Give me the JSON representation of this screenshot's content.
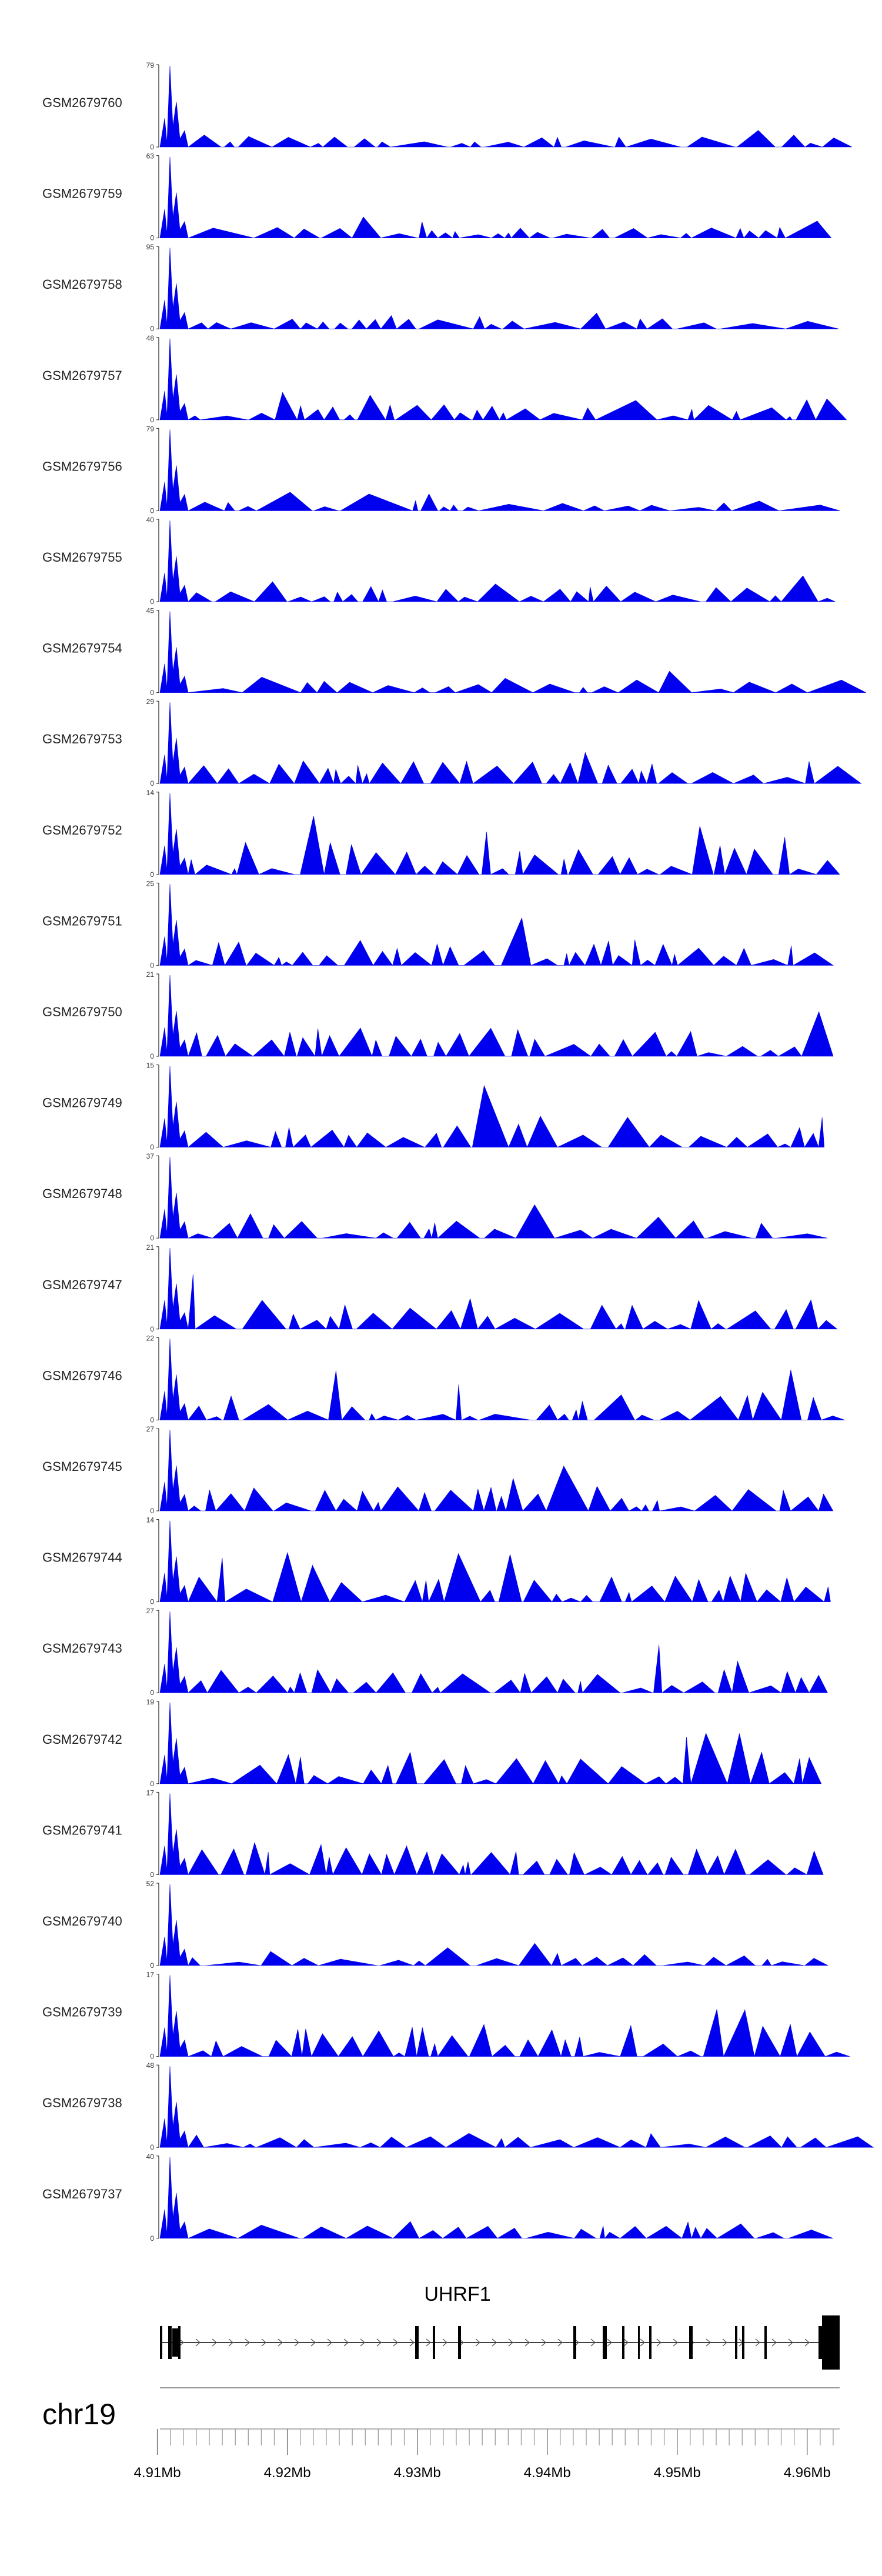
{
  "chart_data": {
    "type": "area",
    "title": "",
    "chromosome": "chr19",
    "gene": "UHRF1",
    "x_range_mb": [
      4.9102,
      4.9625
    ],
    "x_ticks": [
      4.91,
      4.92,
      4.93,
      4.94,
      4.95,
      4.96
    ],
    "x_tick_labels": [
      "4.91Mb",
      "4.92Mb",
      "4.93Mb",
      "4.94Mb",
      "4.95Mb",
      "4.96Mb"
    ],
    "colors": {
      "signal": "#0000ee",
      "gene": "#000000",
      "axis": "#999999"
    },
    "series": [
      {
        "name": "GSM2679760",
        "max": 79
      },
      {
        "name": "GSM2679759",
        "max": 63
      },
      {
        "name": "GSM2679758",
        "max": 95
      },
      {
        "name": "GSM2679757",
        "max": 48
      },
      {
        "name": "GSM2679756",
        "max": 79
      },
      {
        "name": "GSM2679755",
        "max": 40
      },
      {
        "name": "GSM2679754",
        "max": 45
      },
      {
        "name": "GSM2679753",
        "max": 29
      },
      {
        "name": "GSM2679752",
        "max": 14
      },
      {
        "name": "GSM2679751",
        "max": 25
      },
      {
        "name": "GSM2679750",
        "max": 21
      },
      {
        "name": "GSM2679749",
        "max": 15
      },
      {
        "name": "GSM2679748",
        "max": 37
      },
      {
        "name": "GSM2679747",
        "max": 21
      },
      {
        "name": "GSM2679746",
        "max": 22
      },
      {
        "name": "GSM2679745",
        "max": 27
      },
      {
        "name": "GSM2679744",
        "max": 14
      },
      {
        "name": "GSM2679743",
        "max": 27
      },
      {
        "name": "GSM2679742",
        "max": 19
      },
      {
        "name": "GSM2679741",
        "max": 17
      },
      {
        "name": "GSM2679740",
        "max": 52
      },
      {
        "name": "GSM2679739",
        "max": 17
      },
      {
        "name": "GSM2679738",
        "max": 48
      },
      {
        "name": "GSM2679737",
        "max": 40
      }
    ],
    "y_min_label": "0"
  }
}
